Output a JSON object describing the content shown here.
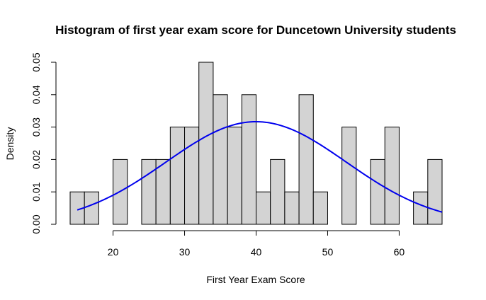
{
  "chart_data": {
    "type": "bar",
    "title": "Histogram of first year exam score for Duncetown University students",
    "xlabel": "First Year Exam Score",
    "ylabel": "Density",
    "xlim": [
      14,
      66
    ],
    "ylim": [
      0,
      0.05
    ],
    "x_ticks": [
      20,
      30,
      40,
      50,
      60
    ],
    "x_tick_labels": [
      "20",
      "30",
      "40",
      "50",
      "60"
    ],
    "y_ticks": [
      0,
      0.01,
      0.02,
      0.03,
      0.04,
      0.05
    ],
    "y_tick_labels": [
      "0.00",
      "0.01",
      "0.02",
      "0.03",
      "0.04",
      "0.05"
    ],
    "bin_width": 2,
    "bins": [
      {
        "start": 14,
        "end": 16,
        "density": 0.01
      },
      {
        "start": 16,
        "end": 18,
        "density": 0.01
      },
      {
        "start": 18,
        "end": 20,
        "density": 0
      },
      {
        "start": 20,
        "end": 22,
        "density": 0.02
      },
      {
        "start": 22,
        "end": 24,
        "density": 0
      },
      {
        "start": 24,
        "end": 26,
        "density": 0.02
      },
      {
        "start": 26,
        "end": 28,
        "density": 0.02
      },
      {
        "start": 28,
        "end": 30,
        "density": 0.03
      },
      {
        "start": 30,
        "end": 32,
        "density": 0.03
      },
      {
        "start": 32,
        "end": 34,
        "density": 0.05
      },
      {
        "start": 34,
        "end": 36,
        "density": 0.04
      },
      {
        "start": 36,
        "end": 38,
        "density": 0.03
      },
      {
        "start": 38,
        "end": 40,
        "density": 0.04
      },
      {
        "start": 40,
        "end": 42,
        "density": 0.01
      },
      {
        "start": 42,
        "end": 44,
        "density": 0.02
      },
      {
        "start": 44,
        "end": 46,
        "density": 0.01
      },
      {
        "start": 46,
        "end": 48,
        "density": 0.04
      },
      {
        "start": 48,
        "end": 50,
        "density": 0.01
      },
      {
        "start": 50,
        "end": 52,
        "density": 0
      },
      {
        "start": 52,
        "end": 54,
        "density": 0.03
      },
      {
        "start": 54,
        "end": 56,
        "density": 0
      },
      {
        "start": 56,
        "end": 58,
        "density": 0.02
      },
      {
        "start": 58,
        "end": 60,
        "density": 0.03
      },
      {
        "start": 60,
        "end": 62,
        "density": 0
      },
      {
        "start": 62,
        "end": 64,
        "density": 0.01
      },
      {
        "start": 64,
        "end": 66,
        "density": 0.02
      }
    ],
    "density_curve": {
      "type": "line",
      "color": "#0000ee",
      "mean": 40,
      "sd": 12.6,
      "x_range": [
        15,
        66
      ]
    },
    "bar_fill": "#d3d3d3",
    "bar_stroke": "#000000",
    "grid": false,
    "legend": "none"
  }
}
